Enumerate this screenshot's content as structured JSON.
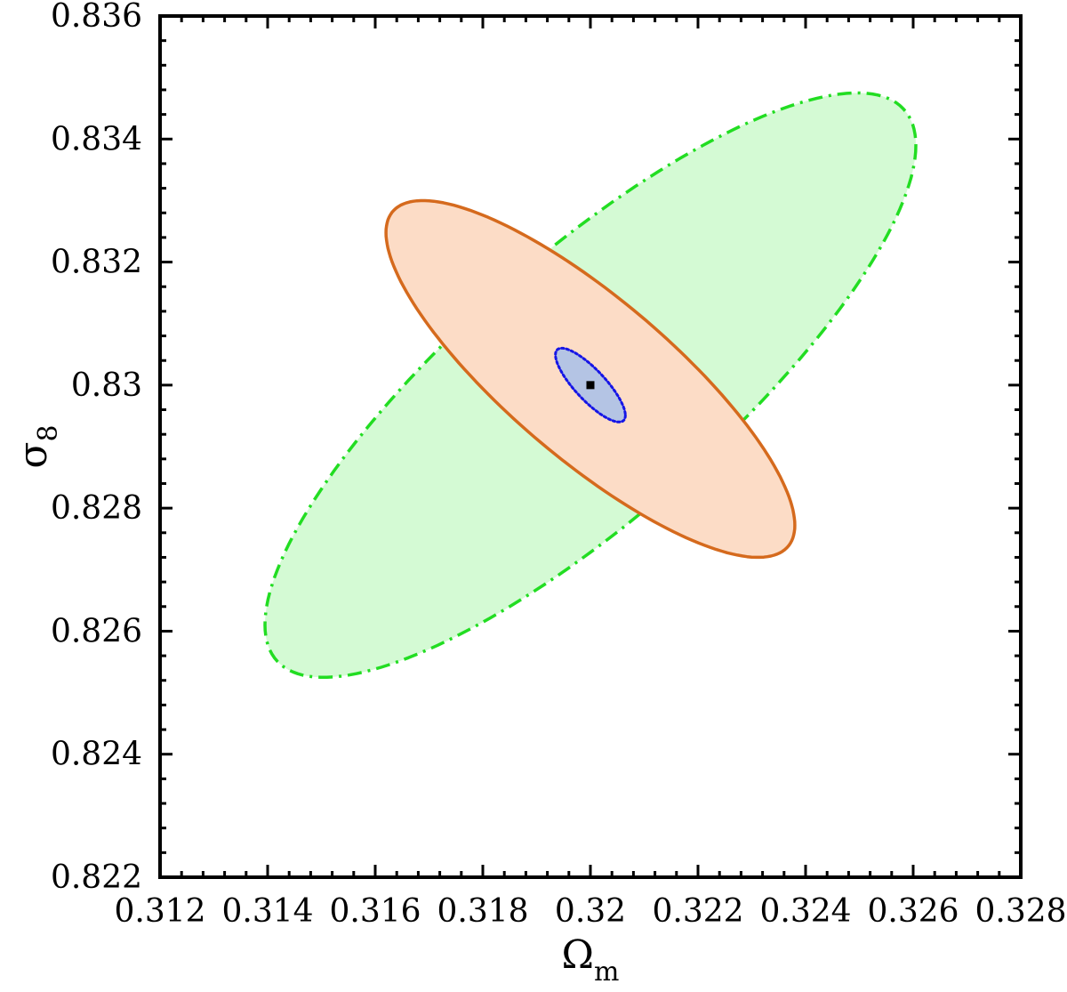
{
  "chart_data": {
    "type": "scatter",
    "title": "",
    "xlabel": "Ω",
    "xlabel_subscript": "m",
    "ylabel": "σ",
    "ylabel_subscript": "8",
    "xlim": [
      0.312,
      0.328
    ],
    "ylim": [
      0.822,
      0.836
    ],
    "x_ticks": [
      0.312,
      0.314,
      0.316,
      0.318,
      0.32,
      0.322,
      0.324,
      0.326,
      0.328
    ],
    "x_tick_labels": [
      "0.312",
      "0.314",
      "0.316",
      "0.318",
      "0.32",
      "0.322",
      "0.324",
      "0.326",
      "0.328"
    ],
    "y_ticks": [
      0.822,
      0.824,
      0.826,
      0.828,
      0.83,
      0.832,
      0.834,
      0.836
    ],
    "y_tick_labels": [
      "0.822",
      "0.824",
      "0.826",
      "0.828",
      "0.83",
      "0.832",
      "0.834",
      "0.836"
    ],
    "grid": false,
    "fiducial_point": {
      "x": 0.32,
      "y": 0.83
    },
    "contours": [
      {
        "center": [
          0.32,
          0.83
        ],
        "extent_x": [
          0.314,
          0.3261
        ],
        "extent_y": [
          0.8253,
          0.8348
        ],
        "orientation": "positive-correlation",
        "fill": "#d4fad4",
        "stroke": "#22dd22",
        "line_style": "dash-dot"
      },
      {
        "center": [
          0.32,
          0.8301
        ],
        "extent_x": [
          0.3162,
          0.3238
        ],
        "extent_y": [
          0.8272,
          0.833
        ],
        "orientation": "negative-correlation",
        "fill": "#fcdcc6",
        "stroke": "#d56a1d",
        "line_style": "solid"
      },
      {
        "center": [
          0.32,
          0.83
        ],
        "extent_x": [
          0.3194,
          0.3207
        ],
        "extent_y": [
          0.8294,
          0.8306
        ],
        "orientation": "negative-correlation",
        "fill": "#b4c4e4",
        "stroke": "#1515e6",
        "line_style": "dotted"
      }
    ]
  }
}
